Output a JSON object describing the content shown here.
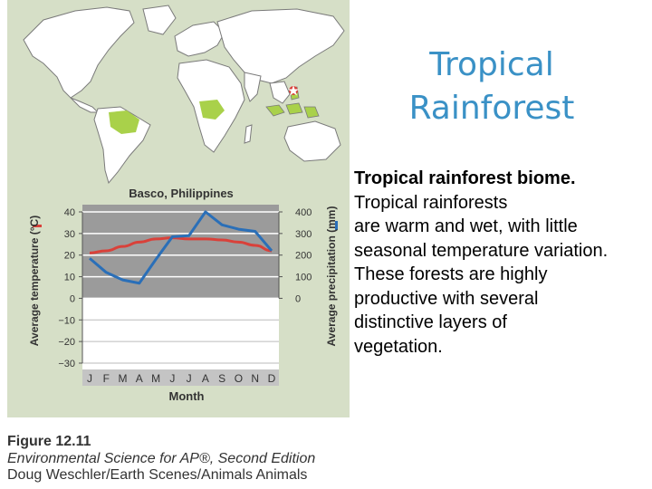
{
  "slide": {
    "title_lines": [
      "Tropical",
      "Rainforest"
    ],
    "body_bold": "Tropical rainforest biome.",
    "body_lines": [
      "Tropical rainforests",
      "are warm and wet, with little",
      "seasonal temperature variation.",
      "These forests are highly",
      "productive with several",
      "distinctive layers of",
      "vegetation."
    ]
  },
  "figure": {
    "label": "Figure 12.11",
    "source": "Environmental Science for AP®, Second Edition",
    "credit": "Doug Weschler/Earth Scenes/Animals Animals",
    "map_icon": "world-map-icon",
    "biome_color": "#a9d14a",
    "location_marker": "star-marker-icon"
  },
  "chart_data": {
    "type": "line",
    "title": "Basco, Philippines",
    "xlabel": "Month",
    "categories": [
      "J",
      "F",
      "M",
      "A",
      "M",
      "J",
      "J",
      "A",
      "S",
      "O",
      "N",
      "D"
    ],
    "left_axis": {
      "label": "Average temperature (°C)",
      "ticks": [
        40,
        30,
        20,
        10,
        0,
        -10,
        -20,
        -30
      ],
      "ylim": [
        -30,
        40
      ]
    },
    "right_axis": {
      "label": "Average precipitation (mm)",
      "ticks": [
        400,
        300,
        200,
        100,
        0
      ],
      "ylim": [
        0,
        400
      ]
    },
    "series": [
      {
        "axis": "left",
        "color": "#d9413a",
        "values": [
          21,
          22,
          24,
          26,
          27.5,
          28,
          27.5,
          27.5,
          27,
          26,
          24.5,
          22
        ]
      },
      {
        "axis": "right",
        "color": "#2a6fb8",
        "values": [
          185,
          120,
          85,
          70,
          180,
          285,
          290,
          400,
          340,
          320,
          310,
          220
        ]
      }
    ],
    "grid": true,
    "legend": "axis-color-bars"
  }
}
